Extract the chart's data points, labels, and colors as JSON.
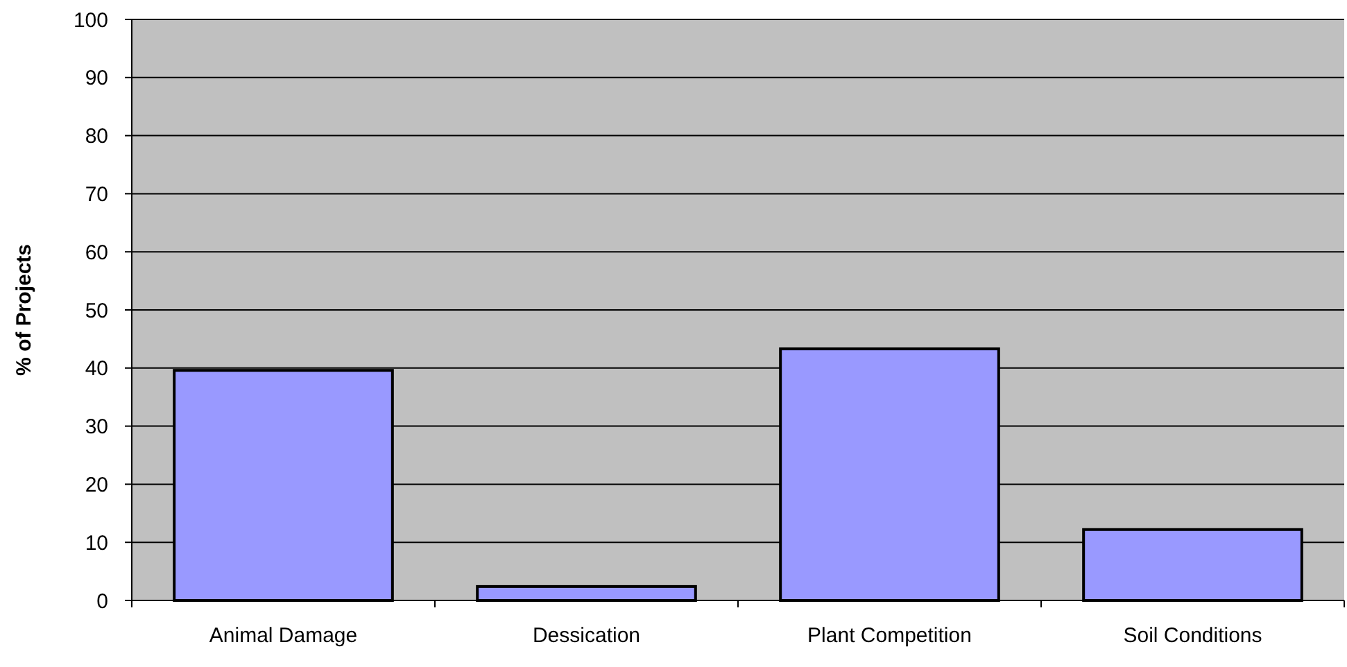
{
  "chart_data": {
    "type": "bar",
    "ylabel": "% of Projects",
    "categories": [
      "Animal Damage",
      "Dessication",
      "Plant Competition",
      "Soil Conditions"
    ],
    "values": [
      39.6,
      2.4,
      43.3,
      12.2
    ],
    "color": "#9999ff",
    "ylim": [
      0,
      100
    ],
    "yticks": [
      0,
      10,
      20,
      30,
      40,
      50,
      60,
      70,
      80,
      90,
      100
    ],
    "grid": "y"
  }
}
